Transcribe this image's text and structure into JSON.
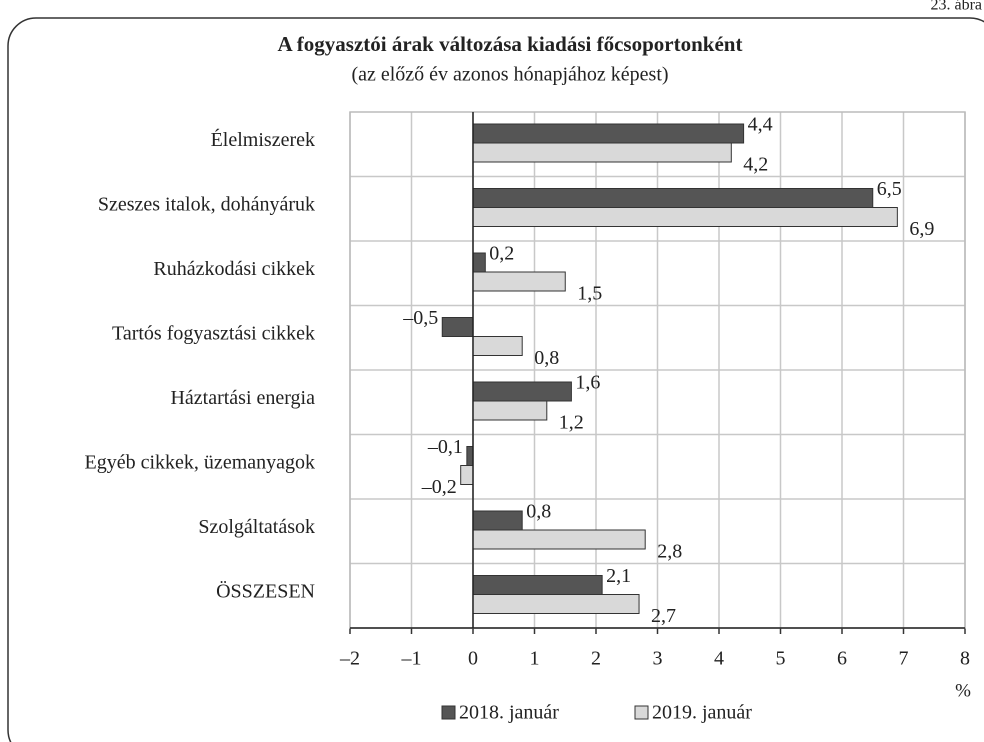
{
  "chart_data": {
    "type": "bar",
    "orientation": "horizontal",
    "figure_label": "23. ábra",
    "title": "A fogyasztói árak változása kiadási főcsoportonként",
    "subtitle": "(az előző év azonos hónapjához képest)",
    "x_unit": "%",
    "categories": [
      "Élelmiszerek",
      "Szeszes italok, dohányáruk",
      "Ruházkodási cikkek",
      "Tartós fogyasztási cikkek",
      "Háztartási energia",
      "Egyéb cikkek, üzemanyagok",
      "Szolgáltatások",
      "ÖSSZESEN"
    ],
    "series": [
      {
        "name": "2018. január",
        "color": "#555555",
        "values": [
          4.4,
          6.5,
          0.2,
          -0.5,
          1.6,
          -0.1,
          0.8,
          2.1
        ],
        "value_labels": [
          "4,4",
          "6,5",
          "0,2",
          "–0,5",
          "1,6",
          "–0,1",
          "0,8",
          "2,1"
        ]
      },
      {
        "name": "2019. január",
        "color": "#d9d9d9",
        "values": [
          4.2,
          6.9,
          1.5,
          0.8,
          1.2,
          -0.2,
          2.8,
          2.7
        ],
        "value_labels": [
          "4,2",
          "6,9",
          "1,5",
          "0,8",
          "1,2",
          "–0,2",
          "2,8",
          "2,7"
        ]
      }
    ],
    "xlim": [
      -2,
      8
    ],
    "xticks": [
      {
        "value": -2,
        "label": "–2"
      },
      {
        "value": -1,
        "label": "–1"
      },
      0,
      1,
      2,
      3,
      4,
      5,
      6,
      7,
      8
    ],
    "grid": true,
    "legend": "bottom"
  }
}
